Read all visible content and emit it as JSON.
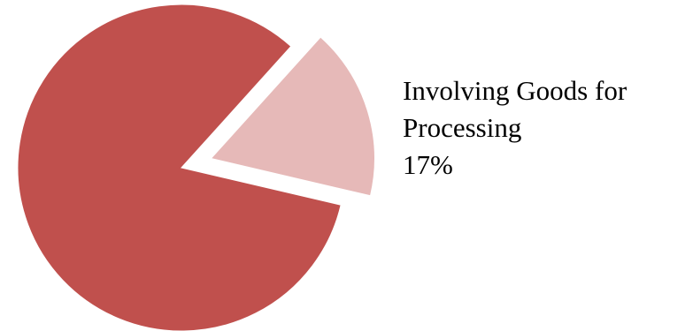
{
  "chart_data": {
    "type": "pie",
    "title": "",
    "slices": [
      {
        "name": "",
        "value": 83,
        "label": "",
        "color": "#c0504d",
        "exploded": false
      },
      {
        "name": "Involving Goods for Processing",
        "value": 17,
        "label": "17%",
        "color": "#e6b9b8",
        "exploded": true
      }
    ],
    "legend": "none",
    "data_labels": {
      "Involving Goods for Processing": {
        "line1": "Involving Goods for",
        "line2": "Processing",
        "percent": "17%"
      }
    }
  }
}
